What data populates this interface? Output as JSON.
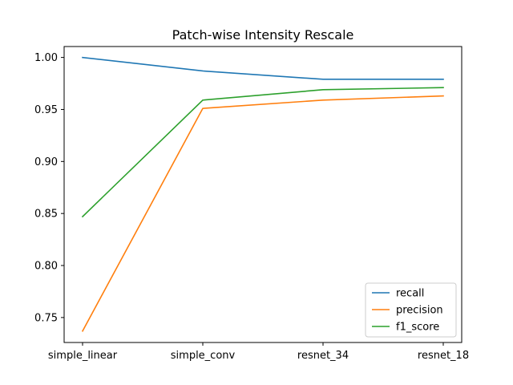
{
  "chart_data": {
    "type": "line",
    "title": "Patch-wise Intensity Rescale",
    "xlabel": "",
    "ylabel": "",
    "categories": [
      "simple_linear",
      "simple_conv",
      "resnet_34",
      "resnet_18"
    ],
    "ylim": [
      0.726,
      1.0105
    ],
    "yticks": [
      "0.75",
      "0.80",
      "0.85",
      "0.90",
      "0.95",
      "1.00"
    ],
    "grid": false,
    "legend_position": "lower right",
    "series": [
      {
        "name": "recall",
        "color": "#1f77b4",
        "values": [
          1.0,
          0.987,
          0.979,
          0.979
        ]
      },
      {
        "name": "precision",
        "color": "#ff7f0e",
        "values": [
          0.737,
          0.951,
          0.959,
          0.963
        ]
      },
      {
        "name": "f1_score",
        "color": "#2ca02c",
        "values": [
          0.847,
          0.959,
          0.969,
          0.971
        ]
      }
    ]
  }
}
